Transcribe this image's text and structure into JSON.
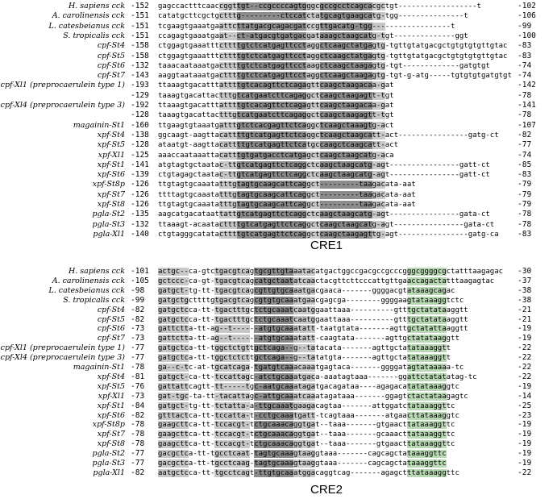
{
  "cre1": {
    "title": "CRE1",
    "rows": [
      {
        "name": "H. sapiens cck",
        "start": "-152",
        "seq": "gagccactttcaaccggttgt--ccgccccagtgggcgccgcctcagcacgctgt------------------t",
        "end": "-102"
      },
      {
        "name": "A. carolinensis cck",
        "start": "-151",
        "seq": "catatgcttcgctgctttg---------ctccatctatgcagtgaagcatg-tgg---------------t",
        "end": "-106"
      },
      {
        "name": "L. catesbeianus cck",
        "start": "-151",
        "seq": "tcgaagtgaaatgaattcttatgacgcagacgatccgttgacatg-tgg------------------t",
        "end": "-99"
      },
      {
        "name": "S. tropicalis cck",
        "start": "-151",
        "seq": "ccagagtgaaatgaat--ct-atgacgtgatgacgataaagctaagcatg-tgt--------------ggt",
        "end": "-100"
      },
      {
        "name": "cpf-St4",
        "start": "-158",
        "seq": "ctggagtgaaatttcttttgtctcatgagttcctaggctcaagctatgagtg-tgttgtatgacgctgtgtgtgttgtac",
        "end": "-83"
      },
      {
        "name": "cpf-St5",
        "start": "-158",
        "seq": "ctggagtgaaatttcttttgtctcatgagttcctaggctcaagctatgagtg-tgttgtatgacgctgtgtgtgttgtac",
        "end": "-83"
      },
      {
        "name": "cpf-St6",
        "start": "-132",
        "seq": "taaacaataaatgacttttgtctcatgagttcctaagctcaagctaagagtg-tgt-------------gatgtgt",
        "end": "-74"
      },
      {
        "name": "cpf-St7",
        "start": "-143",
        "seq": "aaggtaataaatgacttttgtctcatgagttcctaggctcaagctaagagtg-tgt-g-atg-----tgtgtgtgatgtgt",
        "end": "-74"
      },
      {
        "name": "cpf-Xl1 (preprocaerulein type 1)",
        "start": "-193",
        "seq": "ttaaagtgacatttattttgtcacagttctcagagttcaagctaagacaa-gat",
        "end": "-142"
      },
      {
        "name": "",
        "start": "-129",
        "seq": "taaagtgacattactttgtcatgaatcttcagaggctcaagctaagagtt-tgt",
        "end": "-78"
      },
      {
        "name": "cpf-Xl4 (preprocaerulein type 3)",
        "start": "-192",
        "seq": "ttaaagtgacatttattttgtcacagttctcagagttcaagctaagacaa-gat",
        "end": "-141"
      },
      {
        "name": "",
        "start": "-128",
        "seq": "taaagtgacattactttgtcatgaatcttcagaggctcaagctaagagtt-tgt",
        "end": "-78"
      },
      {
        "name": "magainin-St1",
        "start": "-160",
        "seq": "ttgaagtgtaaatgatttgtctcacgagttctcaggctcaagctaaagtg-act",
        "end": "-107"
      },
      {
        "name": "xpf-St4",
        "start": "-138",
        "seq": "ggcaagt-aagttacattttgtcatgagttctcaggctcaagctaagcatt-act----------------gatg-ct",
        "end": "-82"
      },
      {
        "name": "xpf-St5",
        "start": "-128",
        "seq": "ataatgt-aagttacattttgtcatgagttctcatgccaagctcaagcatt-act",
        "end": "-77"
      },
      {
        "name": "xpf-Xl1",
        "start": "-125",
        "seq": "aaaccaataaattacatttgtgatgacctcatgagctcaagctaagcatg-aca",
        "end": "-74"
      },
      {
        "name": "xpf-St1",
        "start": "-141",
        "seq": "atgtagtgctaatac-ttgtcatgagttctcaggctcaagctaagcatg-agt----------------gatt-ct",
        "end": "-85"
      },
      {
        "name": "xpf-St6",
        "start": "-139",
        "seq": "ctgtagagctaatac-ttgtcatgagttctcaggctcaagctaagcatg-agt----------------gatt-ct",
        "end": "-83"
      },
      {
        "name": "xpf-St8p",
        "start": "-126",
        "seq": "ttgtagtgcaaatatttgtagtgcaagcattcaggct---------taagacata-aat",
        "end": "-79"
      },
      {
        "name": "xpf-St7",
        "start": "-126",
        "seq": "ttttagtgcaaatatttgtagtgcaagcattcaggct---------taagacata-aat",
        "end": "-79"
      },
      {
        "name": "xpf-St8",
        "start": "-126",
        "seq": "ttgtagtgcaaatatttgtagtgcaagcattcaggct---------taagacata-aat",
        "end": "-79"
      },
      {
        "name": "pgla-St2",
        "start": "-135",
        "seq": "aagcatgacataattattgtcatgagttctcaggctcaagctaagcatg-agt----------------gata-ct",
        "end": "-78"
      },
      {
        "name": "pgla-St3",
        "start": "-132",
        "seq": "ttaaagt-acaatacttttgtcatgagttctcaggctcaagctaagcatg-agt----------------gata-ct",
        "end": "-78"
      },
      {
        "name": "pgla-Xl1",
        "start": "-140",
        "seq": "ctgtagggcatatacttttgtcatgagttctcaggctcaagctaagagttg-agt----------------gatg-ca",
        "end": "-83"
      }
    ]
  },
  "cre2": {
    "title": "CRE2",
    "rows": [
      {
        "name": "H. sapiens cck",
        "start": "-101",
        "seq": "actgc--ca-gtctgacgtcagtgcgttgtaaatacatgactggccgacgccgcccgggcggggcgctatttaagagac",
        "end": "-30"
      },
      {
        "name": "A. carolinensis cck",
        "start": "-105",
        "seq": "gctccc-ca-gt-tgacgtcagcatgctaatatcaactacgttcttcccattgttgaaccagactatttaagagtac",
        "end": "-37"
      },
      {
        "name": "L. catesbeianus cck",
        "start": "-98",
        "seq": "gatgct-tg-tt-tgacgtcagcgttgtgcaaatgacgaaca-------ggggacgtataaagcagac",
        "end": "-38"
      },
      {
        "name": "S. tropicalis cck",
        "start": "-99",
        "seq": "gatgctgcttttgtgacgtcagcgtgtgcaaatgaacgagcga--------ggggaagtataaaggtctc",
        "end": "-38"
      },
      {
        "name": "cpf-St4",
        "start": "-82",
        "seq": "gatgctcca-tt-tgactttgctctgcaaatcaatggaattaaa----------gtttgctatataaggtt",
        "end": "-21"
      },
      {
        "name": "cpf-St5",
        "start": "-82",
        "seq": "gatgctcca-tt-tgactttgctctgcaaatcaatggaattaaa----------gtttgctatataaggtt",
        "end": "-21"
      },
      {
        "name": "cpf-St6",
        "start": "-73",
        "seq": "gattctta-tt-ag--t------atgtgcaaatatt-taatgtata-------agttgctatattaaggtt",
        "end": "-19"
      },
      {
        "name": "cpf-St7",
        "start": "-73",
        "seq": "gattctta-tt-ag--t------atgtgcaaatatt-caagtata-------agttgctatataaggtt",
        "end": "-19"
      },
      {
        "name": "cpf-Xl1 (preprocaerulein type 1)",
        "start": "-77",
        "seq": "gatgctca-tt-tggctctgttgctcaga--g--tatacata-------agttgctatataaaggtt",
        "end": "-22"
      },
      {
        "name": "cpf-Xl4 (preprocaerulein type 3)",
        "start": "-77",
        "seq": "gatgctca-tt-tggctctcttgctcaga--g--tatatgta-------agttgctatataaaggtt",
        "end": "-22"
      },
      {
        "name": "magainin-St1",
        "start": "-78",
        "seq": "ga--c-tc-at-tgcatcaga-tgatgtcaaacaaatgagtaca-------ggggatagtataaaaa-tc",
        "end": "-22"
      },
      {
        "name": "xpf-St4",
        "start": "-81",
        "seq": "gatgct-ca-tt-tccattagc-atctgcaaatgaca-aaatagtaaa-------ggattctatatatag-tc",
        "end": "-22"
      },
      {
        "name": "xpf-St5",
        "start": "-76",
        "seq": "gattattcagtt-tt-----tgc-aatgcaaatagatgacagataa----agagacatatataaaggtc",
        "end": "-19"
      },
      {
        "name": "xpf-Xl1",
        "start": "-73",
        "seq": "gat-tgc-ta-tt-tacattagc-attgcaaatcaaatagataaa-------ggagtctactataagagtc",
        "end": "-14"
      },
      {
        "name": "xpf-St1",
        "start": "-84",
        "seq": "gatgct-tg-tt-tctatta-a-ttgcaaatgaagacagtaa-------attggatctataaaggttc",
        "end": "-25"
      },
      {
        "name": "xpf-St6",
        "start": "-82",
        "seq": "gtttactca-tt-tccatta-t-cctgcaaatgatt-tcagtaaa-------atgaacttataaaggtc",
        "end": "-23"
      },
      {
        "name": "xpf-St8p",
        "start": "-78",
        "seq": "gaagcttca-tt-tccacgt-tctgcaaacaggtgat--taaa-------gtgaacttataaaggttc",
        "end": "-19"
      },
      {
        "name": "xpf-St7",
        "start": "-78",
        "seq": "gaagcttca-tt-tccacgt-tctgcaaacaggtgat--taaa-------gcaaacttataaaggttc",
        "end": "-19"
      },
      {
        "name": "xpf-St8",
        "start": "-78",
        "seq": "gaagcttca-tt-tccacgt-tctgcaaacaggtgat--taaa-------gtgaacttataaaggttc",
        "end": "-19"
      },
      {
        "name": "pgla-St2",
        "start": "-77",
        "seq": "gacgctca-tt-tgcctcaat-tagtgcaaagtaaggtaaa-------cagcagctataaaggttc",
        "end": "-19"
      },
      {
        "name": "pgla-St3",
        "start": "-77",
        "seq": "gacgctca-tt-tgcctcaag-tagtgcaaagtaaggtaaa-------cagcagctataaaggttc",
        "end": "-19"
      },
      {
        "name": "pgla-Xl1",
        "start": "-82",
        "seq": "aatgctcca-tt-tgcctcagt-ttgtgcaaatggacaggtcag-------agagctttataaaggttc",
        "end": "-22"
      }
    ]
  }
}
